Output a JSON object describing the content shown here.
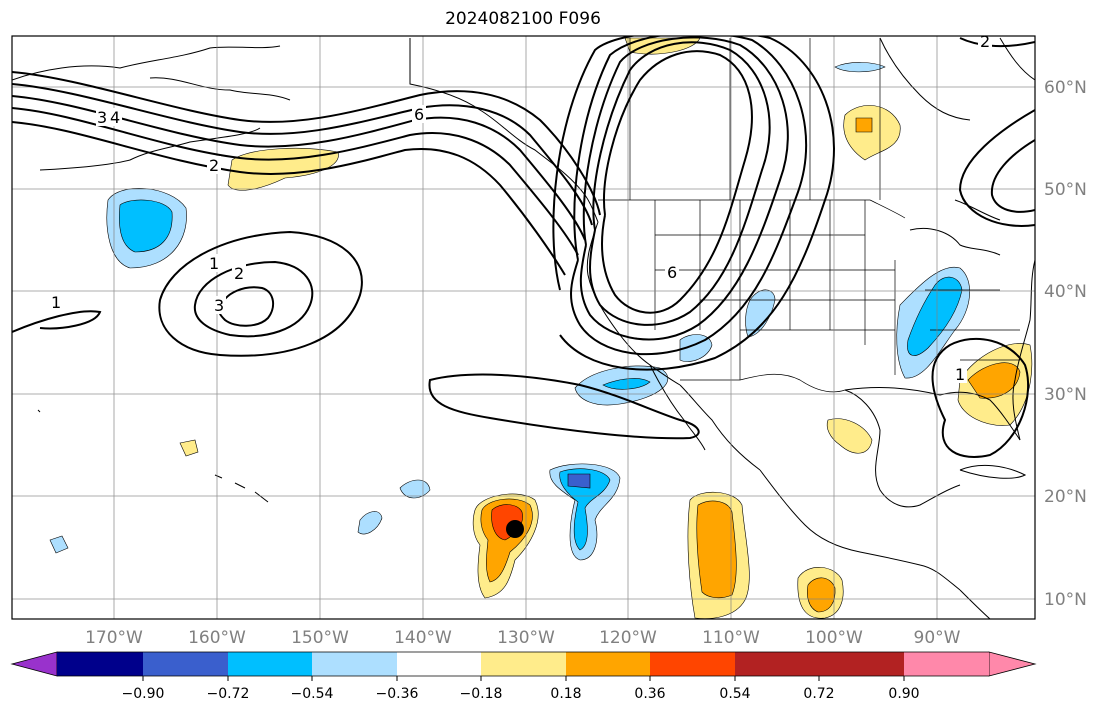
{
  "title": "2024082100 F096",
  "longitude_labels": [
    "170°W",
    "160°W",
    "150°W",
    "140°W",
    "130°W",
    "120°W",
    "110°W",
    "100°W",
    "90°W"
  ],
  "latitude_labels": [
    "60°N",
    "50°N",
    "40°N",
    "30°N",
    "20°N",
    "10°N"
  ],
  "colorbar": {
    "ticks": [
      "−0.90",
      "−0.72",
      "−0.54",
      "−0.36",
      "−0.18",
      "0.18",
      "0.36",
      "0.54",
      "0.72",
      "0.90"
    ],
    "colors": [
      "#9932CC",
      "#00008B",
      "#3A5FCD",
      "#00BFFF",
      "#ADDFFF",
      "#FFFFFF",
      "#FFEC8B",
      "#FFA500",
      "#FF4500",
      "#B22222",
      "#FF88AA"
    ]
  },
  "contour_labels": [
    "3",
    "4",
    "2",
    "6",
    "1",
    "2",
    "3",
    "1",
    "6",
    "1",
    "2"
  ],
  "marker_color": "#000000"
}
